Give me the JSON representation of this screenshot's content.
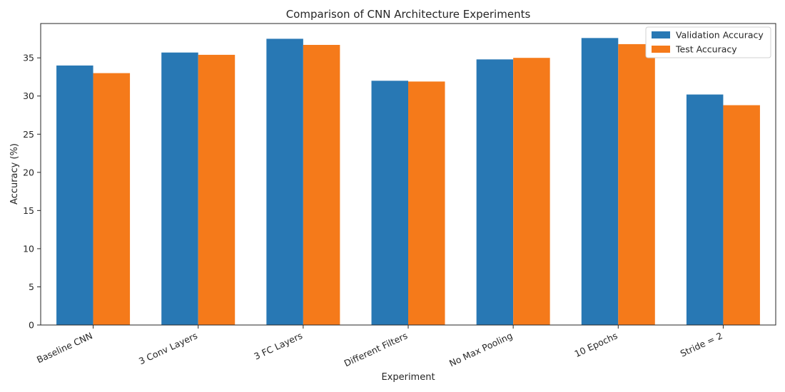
{
  "chart_data": {
    "type": "bar",
    "title": "Comparison of CNN Architecture Experiments",
    "xlabel": "Experiment",
    "ylabel": "Accuracy (%)",
    "categories": [
      "Baseline CNN",
      "3 Conv Layers",
      "3 FC Layers",
      "Different Filters",
      "No Max Pooling",
      "10 Epochs",
      "Stride = 2"
    ],
    "series": [
      {
        "name": "Validation Accuracy",
        "color": "#2878b4",
        "values": [
          34.0,
          35.7,
          37.5,
          32.0,
          34.8,
          37.6,
          30.2
        ]
      },
      {
        "name": "Test Accuracy",
        "color": "#f57a1a",
        "values": [
          33.0,
          35.4,
          36.7,
          31.9,
          35.0,
          36.8,
          28.8
        ]
      }
    ],
    "ylim": [
      0,
      39.5
    ],
    "yticks": [
      0,
      5,
      10,
      15,
      20,
      25,
      30,
      35
    ],
    "grid": false,
    "legend_position": "top-right"
  }
}
